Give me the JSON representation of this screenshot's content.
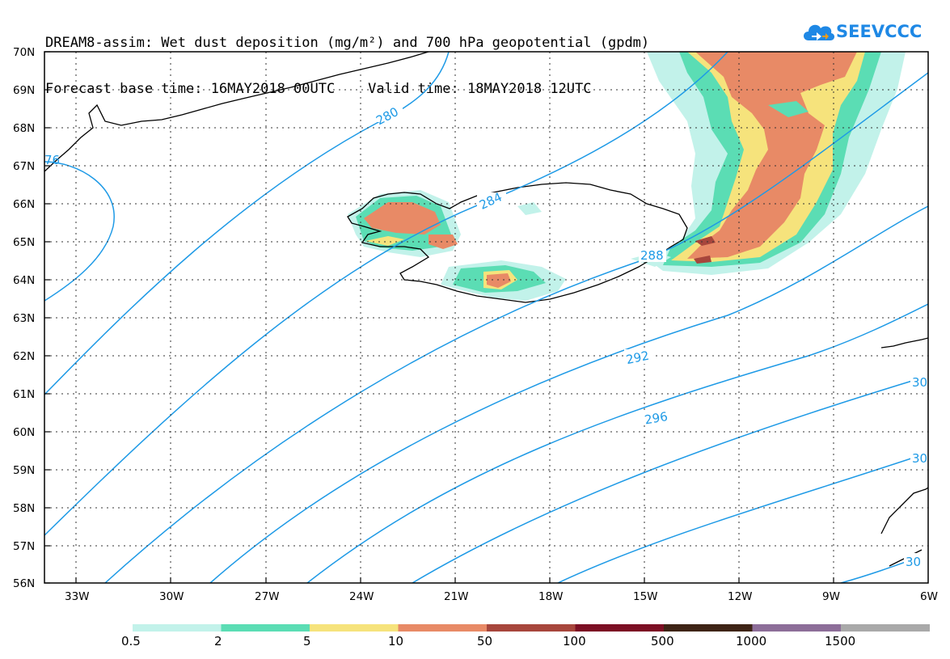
{
  "title": {
    "line1": "DREAM8-assim: Wet dust deposition (mg/m²) and 700 hPa geopotential (gpdm)",
    "line2": "Forecast base time: 16MAY2018 00UTC    Valid time: 18MAY2018 12UTC"
  },
  "logo": {
    "text": "SEEVCCC",
    "icon": "cloud-icon",
    "color": "#1e88e5"
  },
  "axes": {
    "lat_labels": [
      "70N",
      "69N",
      "68N",
      "67N",
      "66N",
      "65N",
      "64N",
      "63N",
      "62N",
      "61N",
      "60N",
      "59N",
      "58N",
      "57N",
      "56N"
    ],
    "lon_labels": [
      "33W",
      "30W",
      "27W",
      "24W",
      "21W",
      "18W",
      "15W",
      "12W",
      "9W",
      "6W"
    ],
    "lat_range": [
      56,
      70
    ],
    "lon_range": [
      -34.4,
      -6
    ]
  },
  "contours": {
    "color": "#1e9ae6",
    "labels": [
      "280",
      "284",
      "288",
      "292",
      "296",
      "30",
      "30",
      "30",
      "76"
    ]
  },
  "legend": {
    "colors": [
      "#c2f2ea",
      "#5bddb4",
      "#f6e37c",
      "#e88a66",
      "#a7463c",
      "#7c0f24",
      "#3e2416",
      "#8d6e99",
      "#a9a9a9"
    ],
    "labels": [
      "0.5",
      "2",
      "5",
      "10",
      "50",
      "100",
      "500",
      "1000",
      "1500"
    ]
  }
}
